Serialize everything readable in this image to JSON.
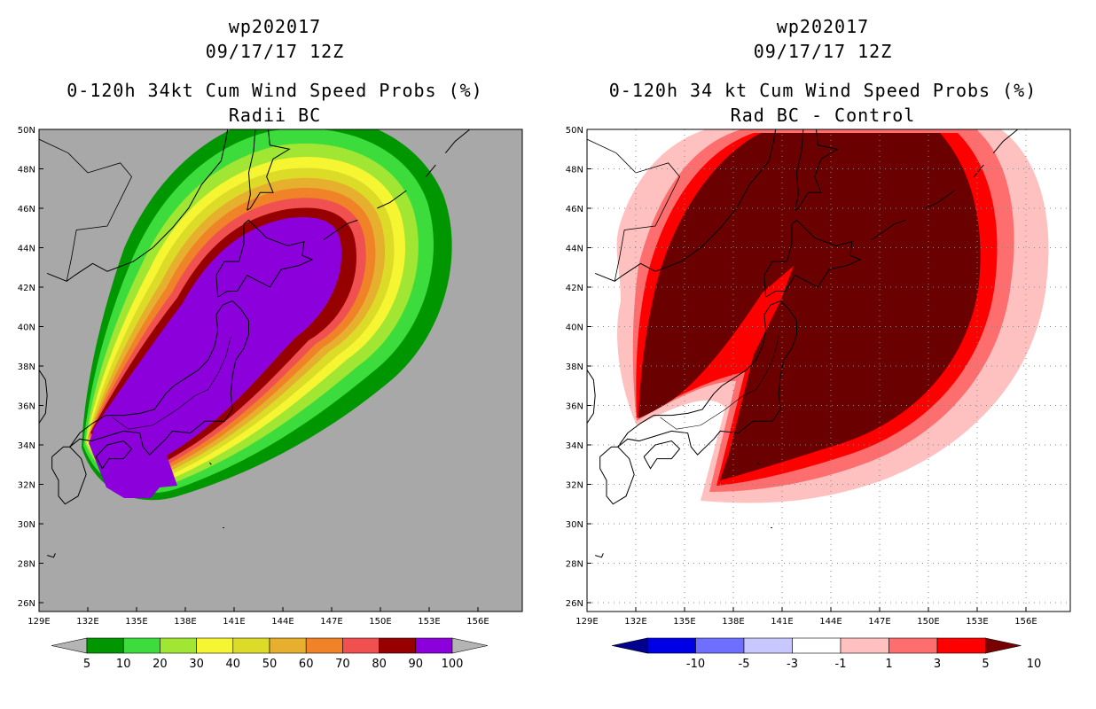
{
  "panels": [
    {
      "storm_id": "wp202017",
      "datetime": "09/17/17 12Z",
      "product": "0-120h 34kt Cum Wind Speed Probs (%)",
      "subtitle": "Radii BC",
      "colorbar": {
        "labels": [
          "5",
          "10",
          "20",
          "30",
          "40",
          "50",
          "60",
          "70",
          "80",
          "90",
          "100"
        ],
        "colors": [
          "#009600",
          "#3ddc3d",
          "#a0e632",
          "#f5f532",
          "#dcdc28",
          "#e6af2d",
          "#f08228",
          "#f05050",
          "#960000",
          "#8c00dc"
        ],
        "arrow_color": "#b4b4b4"
      }
    },
    {
      "storm_id": "wp202017",
      "datetime": "09/17/17 12Z",
      "product": "0-120h 34 kt Cum Wind Speed Probs (%)",
      "subtitle": "Rad BC - Control",
      "colorbar": {
        "labels": [
          "-10",
          "-5",
          "-3",
          "-1",
          "1",
          "3",
          "5",
          "10"
        ],
        "colors": [
          "#0000e6",
          "#6e6eff",
          "#c8c8ff",
          "#ffffff",
          "#ffc0c0",
          "#ff6e6e",
          "#ff0000"
        ],
        "arrow_low": "#00008c",
        "arrow_high": "#780000"
      }
    }
  ],
  "map": {
    "lon_labels": [
      "129E",
      "132E",
      "135E",
      "138E",
      "141E",
      "144E",
      "147E",
      "150E",
      "153E",
      "156E"
    ],
    "lat_labels": [
      "50N",
      "48N",
      "46N",
      "44N",
      "42N",
      "40N",
      "38N",
      "36N",
      "34N",
      "32N",
      "30N",
      "28N",
      "26N"
    ],
    "background_left": "#a8a8a8",
    "background_right": "#ffffff"
  }
}
